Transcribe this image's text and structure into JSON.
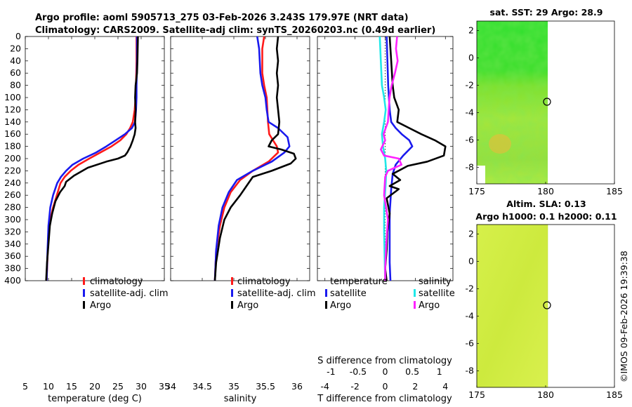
{
  "header": {
    "line1": "Argo profile: aoml 5905713_275 03-Feb-2026 3.243S 179.97E (NRT data)",
    "line2": "Climatology: CARS2009. Satellite-adj clim: synTS_20260203.nc (0.49d earlier)"
  },
  "colors": {
    "climatology": "#ff1a1a",
    "satellite": "#1a1aee",
    "argo": "#000000",
    "s_satellite": "#20e8e8",
    "s_argo": "#ff22ff"
  },
  "watermark": "©IMOS 09-Feb-2026 19:39:38",
  "chart_data": [
    {
      "type": "line",
      "name": "temperature",
      "xlabel": "temperature (deg C)",
      "ylabel": "",
      "xlim": [
        5,
        35
      ],
      "ylim": [
        0,
        400
      ],
      "y_reversed": true,
      "xticks": [
        5,
        10,
        15,
        20,
        25,
        30,
        35
      ],
      "yticks": [
        0,
        20,
        40,
        60,
        80,
        100,
        120,
        140,
        160,
        180,
        200,
        220,
        240,
        260,
        280,
        300,
        320,
        340,
        360,
        380,
        400
      ],
      "legend": [
        "climatology",
        "satellite-adj. clim",
        "Argo"
      ],
      "series": [
        {
          "name": "climatology",
          "color": "#ff1a1a",
          "x": [
            29,
            29,
            28.9,
            28.8,
            28.6,
            28.2,
            27.6,
            26.8,
            25.5,
            23.6,
            21.2,
            18.8,
            16.5,
            14.8,
            13.5,
            12.6,
            11.8,
            11.0,
            10.4,
            10.0,
            9.8,
            9.6
          ],
          "y": [
            0,
            40,
            80,
            100,
            120,
            140,
            150,
            160,
            170,
            180,
            190,
            200,
            210,
            220,
            230,
            240,
            260,
            280,
            300,
            330,
            360,
            400
          ]
        },
        {
          "name": "satellite-adj. clim",
          "color": "#1a1aee",
          "x": [
            29.1,
            29.1,
            29.0,
            29.0,
            28.9,
            28.7,
            28.0,
            26.5,
            24.5,
            22.5,
            20.3,
            17.5,
            15.2,
            13.8,
            12.7,
            11.9,
            11.0,
            10.4,
            10.0,
            9.8,
            9.6
          ],
          "y": [
            0,
            40,
            80,
            100,
            120,
            140,
            150,
            160,
            170,
            180,
            190,
            200,
            210,
            220,
            230,
            240,
            260,
            280,
            310,
            350,
            400
          ]
        },
        {
          "name": "Argo",
          "color": "#000000",
          "x": [
            29.3,
            29.2,
            29.1,
            28.8,
            28.7,
            28.8,
            28.7,
            28.8,
            28.6,
            28.2,
            27.7,
            27.0,
            26.5,
            25.0,
            22.5,
            18.5,
            15.5,
            13.8,
            13.5,
            12.5,
            11.5,
            10.8,
            10.3,
            10.0,
            9.7,
            9.5
          ],
          "y": [
            0,
            40,
            60,
            80,
            100,
            120,
            140,
            150,
            160,
            170,
            180,
            190,
            195,
            200,
            205,
            215,
            228,
            238,
            245,
            255,
            270,
            290,
            310,
            340,
            370,
            400
          ]
        }
      ]
    },
    {
      "type": "line",
      "name": "salinity",
      "xlabel": "salinity",
      "xlim": [
        34,
        36.2
      ],
      "ylim": [
        0,
        400
      ],
      "y_reversed": true,
      "xticks": [
        34,
        34.5,
        35,
        35.5,
        36
      ],
      "legend": [
        "climatology",
        "satellite-adj. clim",
        "Argo"
      ],
      "series": [
        {
          "name": "climatology",
          "color": "#ff1a1a",
          "x": [
            35.48,
            35.45,
            35.45,
            35.48,
            35.52,
            35.53,
            35.54,
            35.56,
            35.62,
            35.68,
            35.7,
            35.55,
            35.3,
            35.1,
            34.95,
            34.85,
            34.78,
            34.72,
            34.7
          ],
          "y": [
            0,
            20,
            60,
            80,
            100,
            120,
            140,
            160,
            170,
            180,
            190,
            205,
            220,
            235,
            255,
            280,
            310,
            350,
            400
          ]
        },
        {
          "name": "satellite-adj. clim",
          "color": "#1a1aee",
          "x": [
            35.37,
            35.4,
            35.42,
            35.45,
            35.5,
            35.52,
            35.55,
            35.7,
            35.85,
            35.88,
            35.8,
            35.6,
            35.3,
            35.05,
            34.92,
            34.82,
            34.76,
            34.72,
            34.7
          ],
          "y": [
            0,
            20,
            60,
            80,
            100,
            120,
            140,
            150,
            165,
            180,
            190,
            205,
            220,
            235,
            255,
            280,
            310,
            350,
            400
          ]
        },
        {
          "name": "Argo",
          "color": "#000000",
          "x": [
            35.7,
            35.68,
            35.7,
            35.68,
            35.7,
            35.68,
            35.7,
            35.72,
            35.7,
            35.6,
            35.55,
            35.75,
            35.95,
            35.98,
            35.9,
            35.6,
            35.3,
            35.2,
            35.1,
            34.95,
            34.85,
            34.78,
            34.72,
            34.7
          ],
          "y": [
            0,
            20,
            40,
            60,
            80,
            100,
            120,
            140,
            160,
            170,
            180,
            185,
            192,
            200,
            208,
            220,
            230,
            245,
            260,
            280,
            300,
            330,
            370,
            400
          ]
        }
      ]
    },
    {
      "type": "line",
      "name": "difference from climatology",
      "xlabel": "T difference from climatology",
      "xlabel_top": "S difference from climatology",
      "xlim": [
        -4.5,
        4.5
      ],
      "xlim_top": [
        -1.25,
        1.25
      ],
      "ylim": [
        0,
        400
      ],
      "y_reversed": true,
      "xticks": [
        -4,
        -2,
        0,
        2,
        4
      ],
      "xticks_top": [
        -1,
        -0.5,
        0,
        0.5,
        1
      ],
      "legend_title_left": "temperature",
      "legend_title_right": "salinity",
      "legend": [
        "satellite",
        "Argo",
        "satellite",
        "Argo"
      ],
      "series": [
        {
          "name": "T satellite",
          "color": "#1a1aee",
          "axis": "T",
          "x": [
            0.1,
            0.15,
            0.2,
            0.3,
            0.4,
            0.7,
            1.1,
            1.6,
            1.8,
            1.2,
            0.7,
            0.5,
            0.4,
            0.3,
            0.3,
            0.3,
            0.35
          ],
          "y": [
            0,
            40,
            80,
            120,
            140,
            150,
            160,
            170,
            180,
            195,
            210,
            225,
            250,
            290,
            330,
            370,
            400
          ]
        },
        {
          "name": "T Argo",
          "color": "#000000",
          "axis": "T",
          "x": [
            0.3,
            0.4,
            0.5,
            0.6,
            0.9,
            0.8,
            1.6,
            2.4,
            3.3,
            4.0,
            3.9,
            2.8,
            1.5,
            0.5,
            1.0,
            0.3,
            0.9,
            0.1,
            0.3,
            0.15,
            0.1,
            0.0,
            0.1
          ],
          "y": [
            0,
            40,
            80,
            100,
            120,
            140,
            150,
            160,
            170,
            180,
            195,
            205,
            212,
            225,
            235,
            245,
            250,
            265,
            290,
            320,
            350,
            380,
            400
          ]
        },
        {
          "name": "S satellite",
          "color": "#20e8e8",
          "axis": "S",
          "x": [
            -0.1,
            -0.08,
            -0.06,
            -0.02,
            0.01,
            -0.02,
            -0.06,
            -0.04,
            0.0,
            0.02,
            0.01,
            -0.02,
            -0.02,
            -0.01,
            0.0
          ],
          "y": [
            0,
            40,
            80,
            100,
            120,
            140,
            160,
            180,
            200,
            220,
            240,
            280,
            320,
            360,
            400
          ]
        },
        {
          "name": "S Argo",
          "color": "#ff22ff",
          "axis": "S",
          "x": [
            0.22,
            0.2,
            0.23,
            0.18,
            0.12,
            0.08,
            0.05,
            -0.03,
            0.0,
            -0.08,
            -0.02,
            0.25,
            0.3,
            0.05,
            0.0,
            -0.02,
            0.05,
            0.02,
            0.0,
            0.0
          ],
          "y": [
            0,
            20,
            40,
            60,
            80,
            100,
            140,
            160,
            170,
            185,
            195,
            200,
            210,
            220,
            230,
            260,
            300,
            340,
            380,
            400
          ]
        }
      ]
    },
    {
      "type": "heatmap",
      "name": "satellite SST map",
      "title": "sat. SST: 29 Argo: 28.9",
      "xlim": [
        175,
        185
      ],
      "ylim": [
        -9.2,
        2.7
      ],
      "xticks": [
        175,
        180,
        185
      ],
      "yticks": [
        2,
        0,
        -2,
        -4,
        -6,
        -8
      ],
      "marker": {
        "lon": 179.97,
        "lat": -3.243
      }
    },
    {
      "type": "heatmap",
      "name": "altimetry SLA map",
      "title": "Altim. SLA: 0.13",
      "subtitle": "Argo h1000: 0.1 h2000: 0.11",
      "xlim": [
        175,
        185
      ],
      "ylim": [
        -9.2,
        2.7
      ],
      "xticks": [
        175,
        180,
        185
      ],
      "yticks": [
        2,
        0,
        -2,
        -4,
        -6,
        -8
      ],
      "marker": {
        "lon": 179.97,
        "lat": -3.243
      }
    }
  ]
}
